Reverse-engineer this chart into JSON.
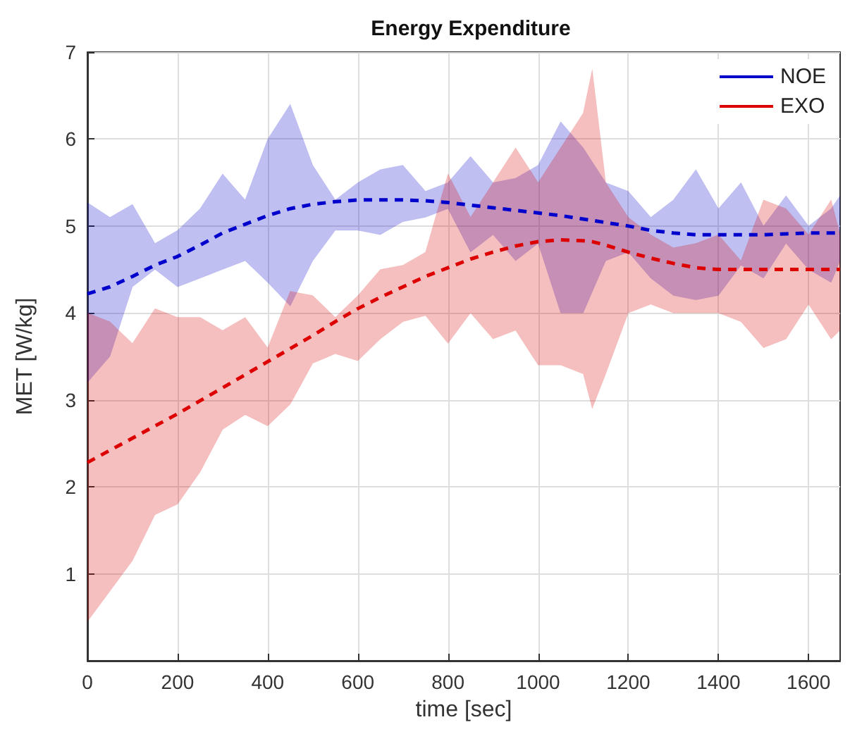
{
  "chart_data": {
    "type": "line",
    "title": "Energy Expenditure",
    "xlabel": "time [sec]",
    "ylabel": "MET [W/kg]",
    "xlim": [
      0,
      1670
    ],
    "xticks": [
      0,
      200,
      400,
      600,
      800,
      1000,
      1200,
      1400,
      1600
    ],
    "ylim": [
      0,
      7
    ],
    "yticks": [
      1,
      2,
      3,
      4,
      5,
      6,
      7
    ],
    "grid": true,
    "legend": "top right",
    "marker": "none",
    "line_style": "dashed",
    "series": [
      {
        "name": "NOE",
        "color": "#0000cc",
        "x": [
          0,
          50,
          100,
          150,
          200,
          250,
          300,
          350,
          400,
          450,
          500,
          550,
          600,
          650,
          700,
          750,
          800,
          850,
          900,
          950,
          1000,
          1050,
          1100,
          1150,
          1200,
          1250,
          1300,
          1350,
          1400,
          1450,
          1500,
          1550,
          1600,
          1650,
          1670
        ],
        "values": [
          4.22,
          4.3,
          4.42,
          4.55,
          4.65,
          4.78,
          4.92,
          5.02,
          5.12,
          5.2,
          5.25,
          5.28,
          5.3,
          5.3,
          5.3,
          5.29,
          5.27,
          5.24,
          5.21,
          5.18,
          5.15,
          5.12,
          5.08,
          5.04,
          5.0,
          4.95,
          4.92,
          4.9,
          4.9,
          4.9,
          4.9,
          4.91,
          4.92,
          4.92,
          4.92
        ],
        "lower": [
          3.2,
          3.5,
          4.3,
          4.5,
          4.3,
          4.4,
          4.5,
          4.6,
          4.35,
          4.08,
          4.6,
          4.95,
          4.95,
          4.9,
          5.05,
          5.1,
          5.2,
          4.7,
          4.9,
          4.6,
          4.8,
          4.0,
          4.0,
          4.6,
          4.7,
          4.4,
          4.2,
          4.15,
          4.2,
          4.55,
          4.4,
          4.8,
          4.5,
          4.35,
          4.6
        ],
        "upper": [
          5.27,
          5.1,
          5.25,
          4.8,
          4.95,
          5.2,
          5.6,
          5.3,
          6.0,
          6.4,
          5.7,
          5.3,
          5.5,
          5.65,
          5.7,
          5.4,
          5.5,
          5.8,
          5.5,
          5.55,
          5.7,
          6.2,
          5.9,
          5.5,
          5.4,
          5.1,
          5.3,
          5.65,
          5.2,
          5.5,
          5.0,
          5.35,
          5.0,
          5.2,
          5.35
        ]
      },
      {
        "name": "EXO",
        "color": "#dd0000",
        "x": [
          0,
          50,
          100,
          150,
          200,
          250,
          300,
          350,
          400,
          450,
          500,
          550,
          600,
          650,
          700,
          750,
          800,
          850,
          900,
          950,
          1000,
          1050,
          1100,
          1120,
          1150,
          1200,
          1250,
          1300,
          1350,
          1400,
          1450,
          1500,
          1550,
          1600,
          1650,
          1670
        ],
        "values": [
          2.28,
          2.42,
          2.56,
          2.7,
          2.84,
          2.99,
          3.14,
          3.29,
          3.44,
          3.59,
          3.74,
          3.9,
          4.05,
          4.18,
          4.3,
          4.42,
          4.52,
          4.62,
          4.7,
          4.77,
          4.82,
          4.84,
          4.83,
          4.82,
          4.78,
          4.7,
          4.63,
          4.57,
          4.52,
          4.5,
          4.5,
          4.5,
          4.5,
          4.5,
          4.5,
          4.5
        ],
        "lower": [
          0.45,
          0.8,
          1.15,
          1.68,
          1.8,
          2.17,
          2.66,
          2.83,
          2.7,
          2.95,
          3.42,
          3.53,
          3.45,
          3.7,
          3.9,
          3.97,
          3.65,
          4.0,
          3.7,
          3.8,
          3.4,
          3.4,
          3.3,
          2.9,
          3.3,
          4.0,
          4.1,
          4.0,
          4.0,
          4.0,
          3.9,
          3.6,
          3.7,
          4.1,
          3.7,
          3.8
        ],
        "upper": [
          4.0,
          3.9,
          3.65,
          4.05,
          3.95,
          3.95,
          3.8,
          3.95,
          3.6,
          4.25,
          4.2,
          3.95,
          4.2,
          4.5,
          4.55,
          4.7,
          5.6,
          5.1,
          5.5,
          5.9,
          5.5,
          5.9,
          6.3,
          6.8,
          5.5,
          5.1,
          4.9,
          4.75,
          4.8,
          4.9,
          4.6,
          5.3,
          5.2,
          4.9,
          5.3,
          4.9
        ]
      }
    ]
  }
}
